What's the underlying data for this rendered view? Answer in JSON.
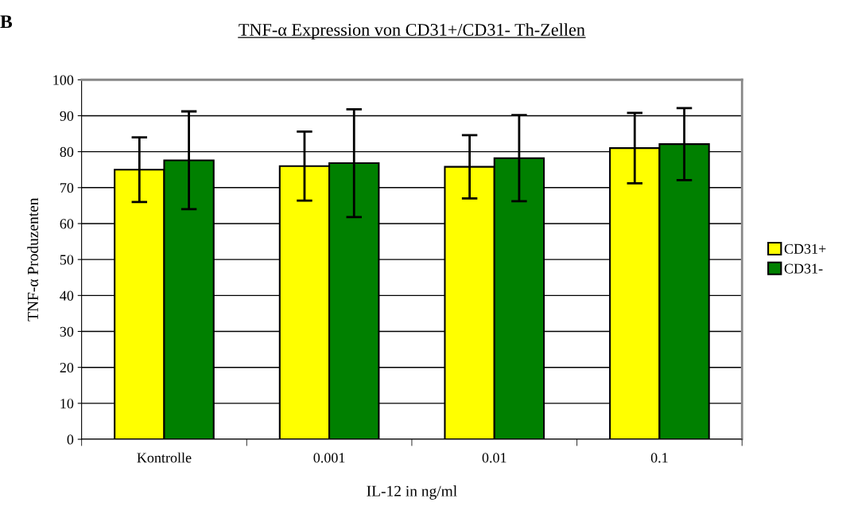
{
  "chart_data": {
    "type": "bar",
    "title": "TNF-α Expression von CD31+/CD31- Th-Zellen",
    "xlabel": "IL-12 in ng/ml",
    "ylabel": "TNF-α Produzenten",
    "annotations": [
      "B"
    ],
    "categories": [
      "Kontrolle",
      "0.001",
      "0.01",
      "0.1"
    ],
    "series": [
      {
        "name": "CD31+",
        "color": "#ffff00",
        "values": [
          75,
          76,
          75.8,
          81
        ],
        "errors": [
          9,
          9.6,
          8.8,
          9.8
        ]
      },
      {
        "name": "CD31-",
        "color": "#008000",
        "values": [
          77.6,
          76.8,
          78.2,
          82.1
        ],
        "errors": [
          13.6,
          15,
          12,
          10
        ]
      }
    ],
    "ylim": [
      0,
      100
    ],
    "yticks": [
      0,
      10,
      20,
      30,
      40,
      50,
      60,
      70,
      80,
      90,
      100
    ],
    "grid": "y",
    "legend": "right"
  }
}
